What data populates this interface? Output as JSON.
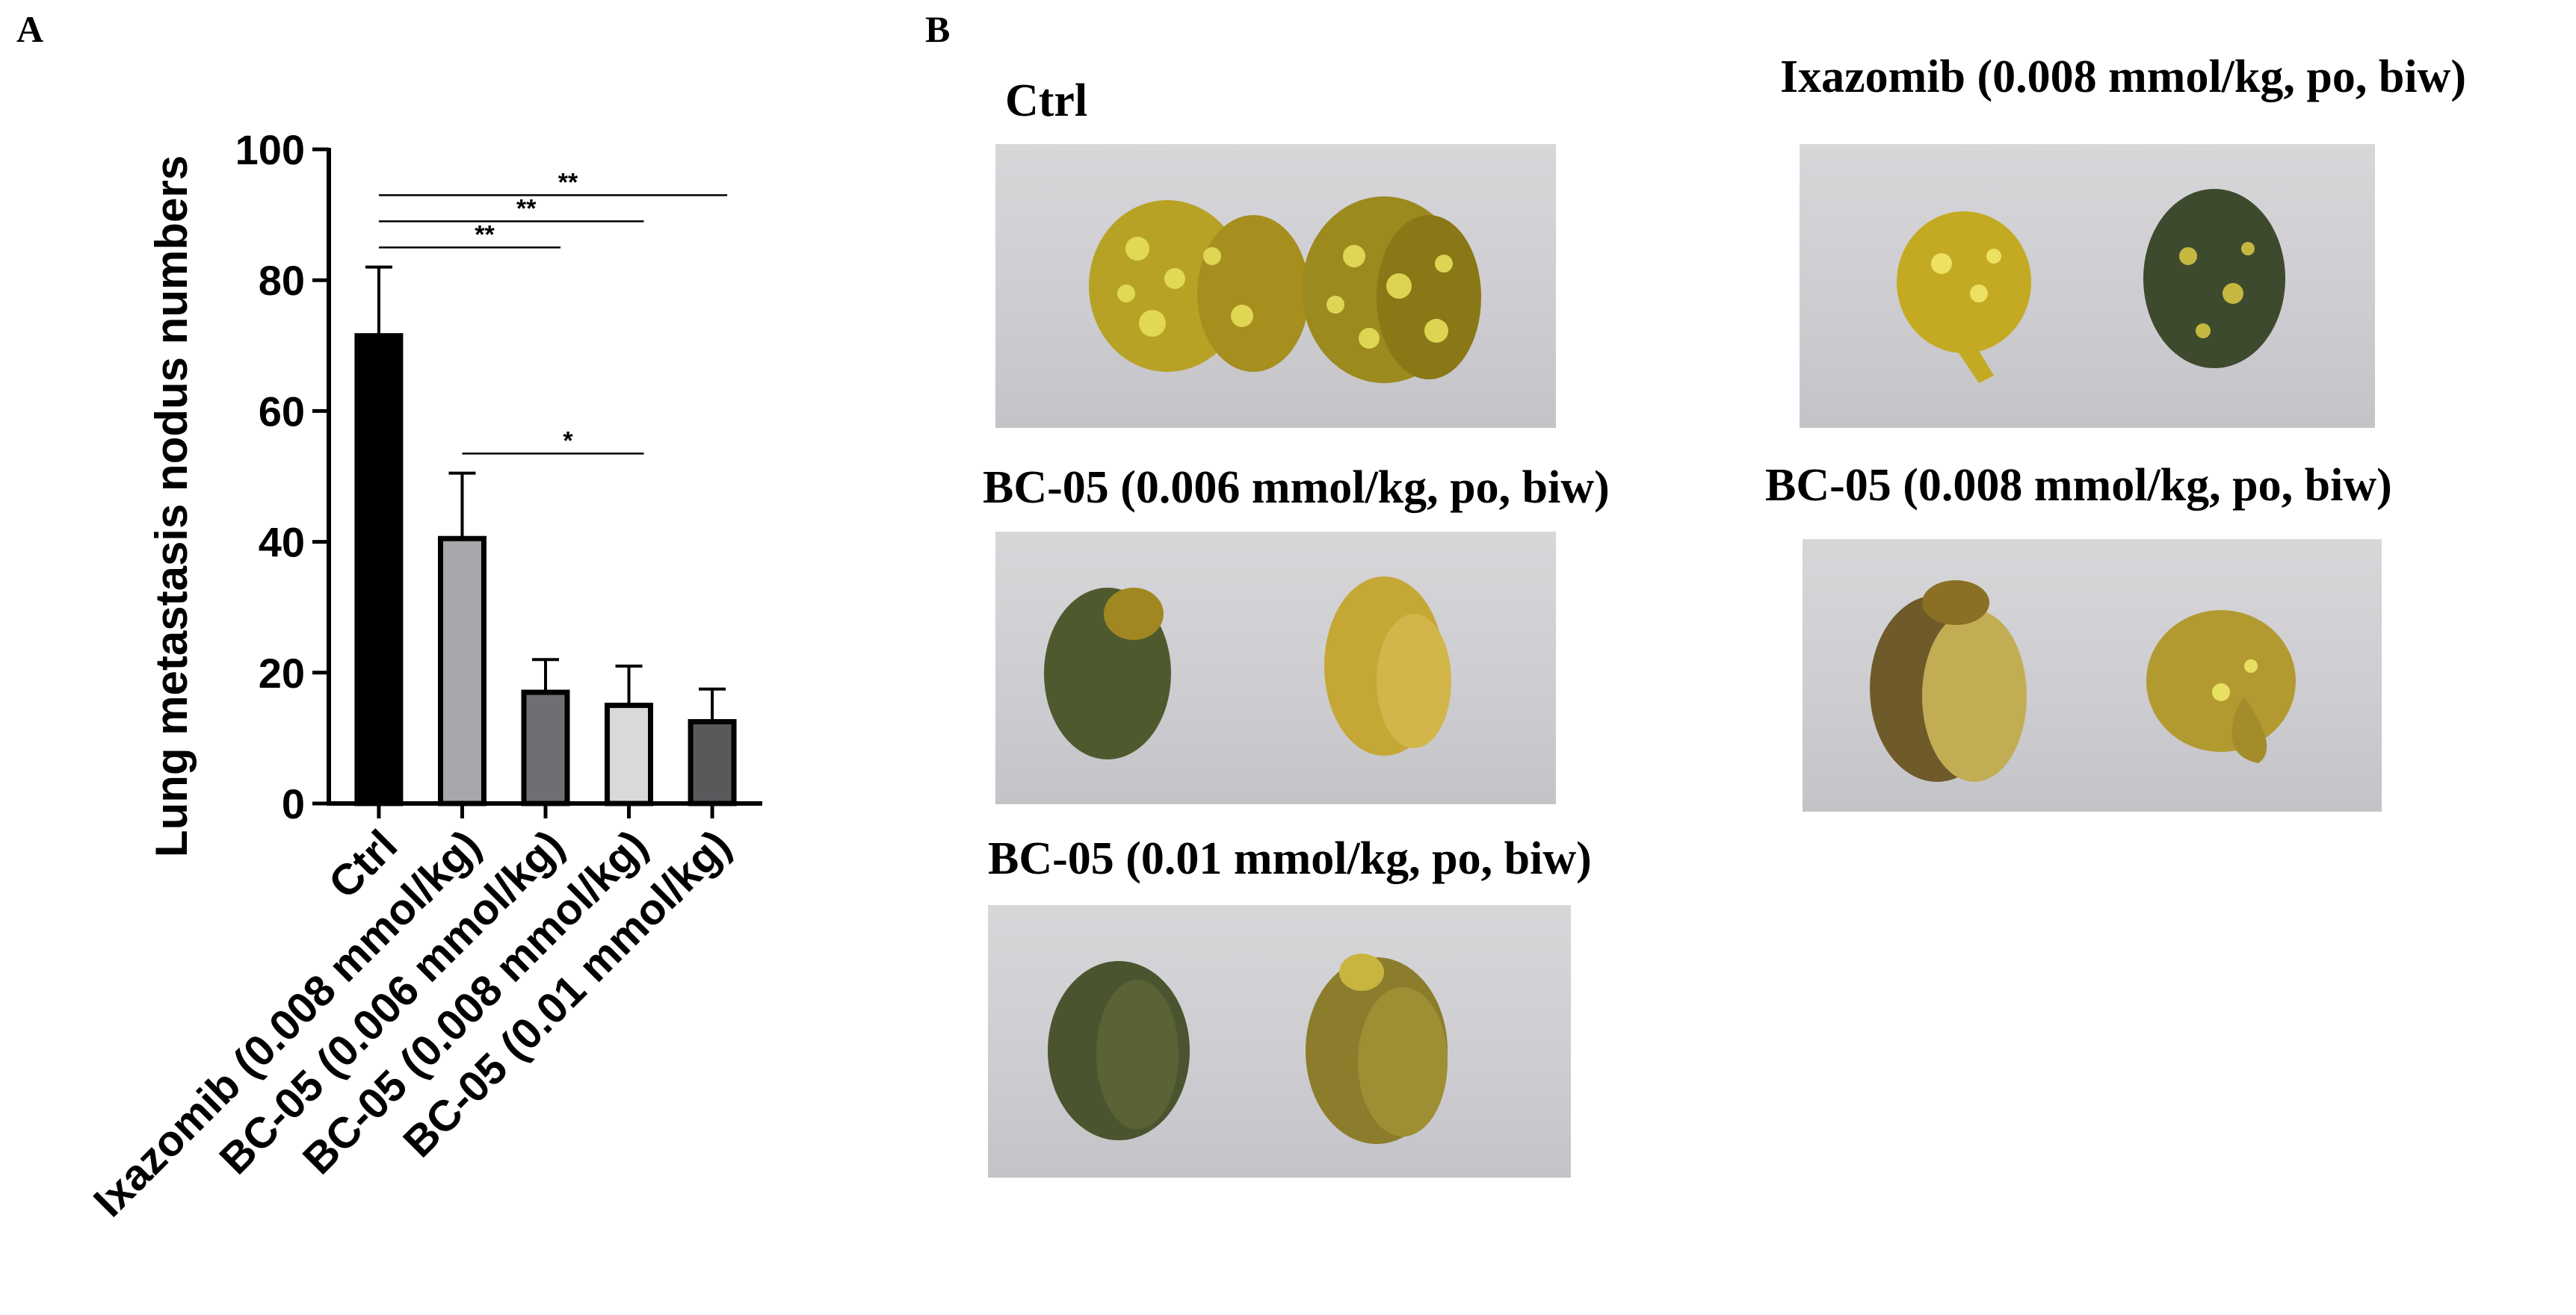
{
  "panels": {
    "a_label": "A",
    "b_label": "B"
  },
  "chart_data": {
    "type": "bar",
    "ylabel": "Lung metastasis nodus numbers",
    "xlabel": "",
    "ylim": [
      0,
      100
    ],
    "yticks": [
      0,
      20,
      40,
      60,
      80,
      100
    ],
    "categories": [
      "Ctrl",
      "Ixazomib (0.008 mmol/kg)",
      "BC-05 (0.006 mmol/kg)",
      "BC-05 (0.008 mmol/kg)",
      "BC-05 (0.01 mmol/kg)"
    ],
    "values": [
      71.5,
      40.5,
      17,
      15,
      12.5
    ],
    "error_upper": [
      82,
      50.5,
      22,
      21,
      17.5
    ],
    "bar_colors": [
      "#000000",
      "#a6a6ab",
      "#6f6f73",
      "#d9d9dc",
      "#59595c"
    ],
    "significance": [
      {
        "from": 0,
        "to": 4,
        "y": 93,
        "label": "**"
      },
      {
        "from": 0,
        "to": 3,
        "y": 89,
        "label": "**"
      },
      {
        "from": 0,
        "to": 2,
        "y": 85,
        "label": "**"
      },
      {
        "from": 1,
        "to": 3,
        "y": 53.5,
        "label": "*"
      }
    ]
  },
  "photos": [
    {
      "title": "Ctrl",
      "tone": "yellow"
    },
    {
      "title": "Ixazomib (0.008 mmol/kg, po, biw)",
      "tone": "mixed"
    },
    {
      "title": "BC-05 (0.006 mmol/kg, po, biw)",
      "tone": "green-yellow"
    },
    {
      "title": "BC-05 (0.008 mmol/kg, po, biw)",
      "tone": "brown-yellow"
    },
    {
      "title": "BC-05 (0.01 mmol/kg, po, biw)",
      "tone": "green"
    }
  ]
}
